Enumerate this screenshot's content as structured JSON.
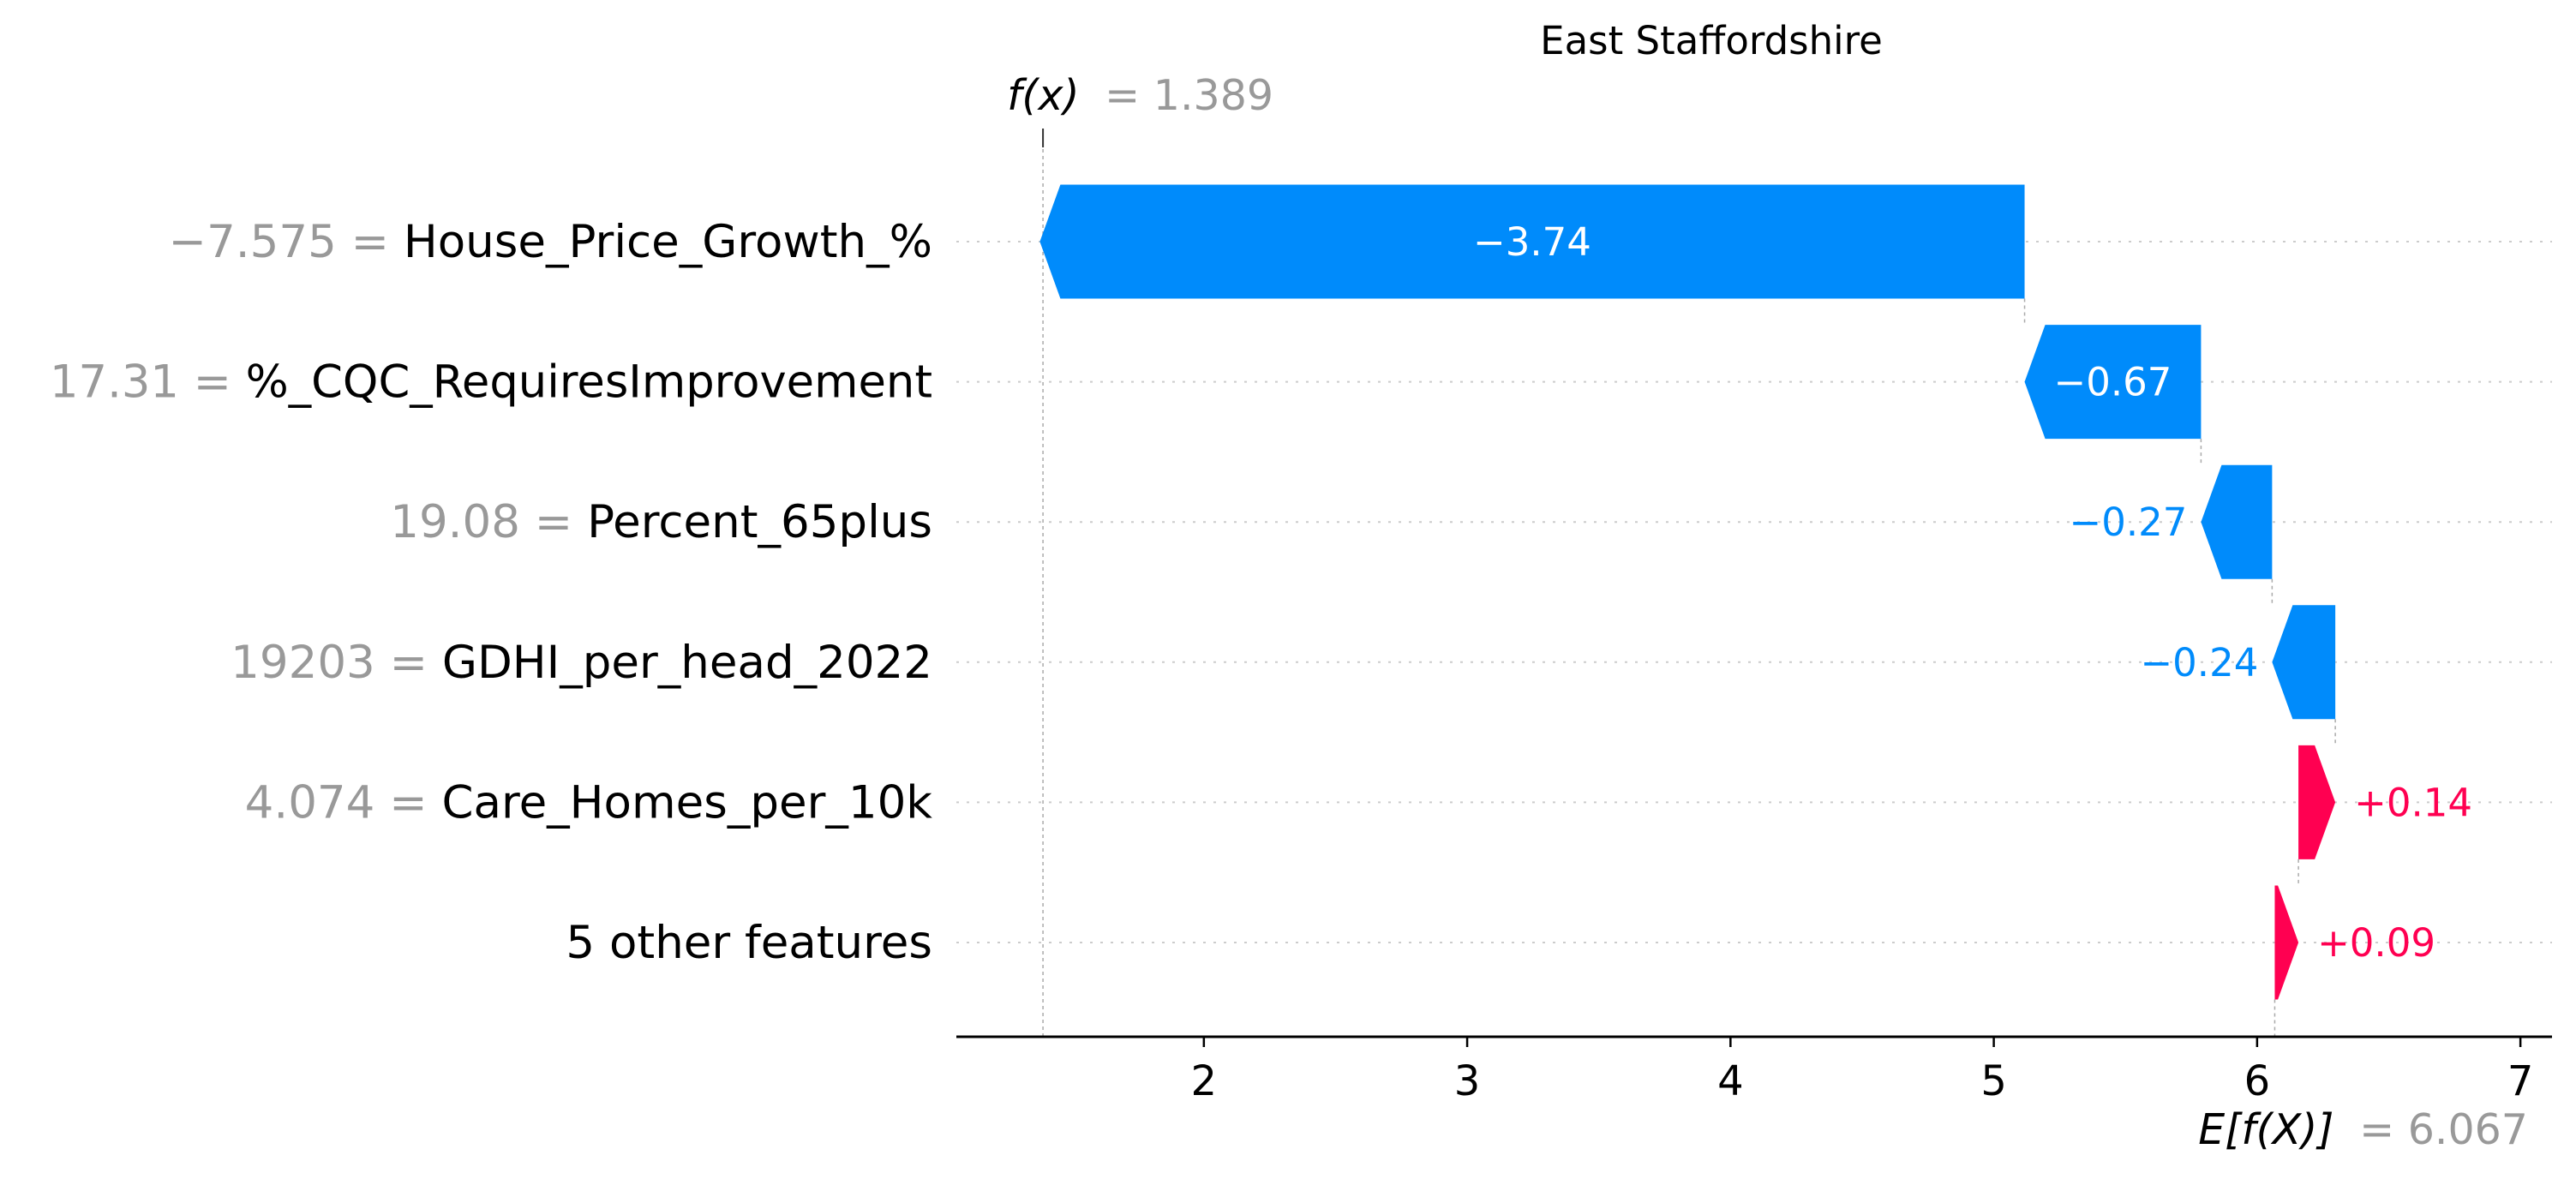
{
  "chart_data": {
    "type": "waterfall",
    "title": "East Staffordshire",
    "output_value": 1.389,
    "output_label": "f(x)",
    "output_label_text": "= 1.389",
    "base_value": 6.067,
    "base_label": "E[f(X)]",
    "base_label_text": "= 6.067",
    "xlim": [
      1.06,
      7.12
    ],
    "xticks": [
      2,
      3,
      4,
      5,
      6,
      7
    ],
    "xtick_labels": [
      "2",
      "3",
      "4",
      "5",
      "6",
      "7"
    ],
    "features": [
      {
        "name": "House_Price_Growth_%",
        "value": "−7.575",
        "shap": -3.74,
        "label": "−3.74"
      },
      {
        "name": "%_CQC_RequiresImprovement",
        "value": "17.31",
        "shap": -0.67,
        "label": "−0.67"
      },
      {
        "name": "Percent_65plus",
        "value": "19.08",
        "shap": -0.27,
        "label": "−0.27"
      },
      {
        "name": "GDHI_per_head_2022",
        "value": "19203",
        "shap": -0.24,
        "label": "−0.24"
      },
      {
        "name": "Care_Homes_per_10k",
        "value": "4.074",
        "shap": 0.14,
        "label": "+0.14"
      },
      {
        "name": "5 other features",
        "value": "",
        "shap": 0.09,
        "label": "+0.09"
      }
    ],
    "colors": {
      "negative": "#008bfb",
      "positive": "#ff0051",
      "value_text": "#999999",
      "grid": "#cccccc",
      "axis": "#000000"
    },
    "grid": true,
    "legend": "none"
  }
}
